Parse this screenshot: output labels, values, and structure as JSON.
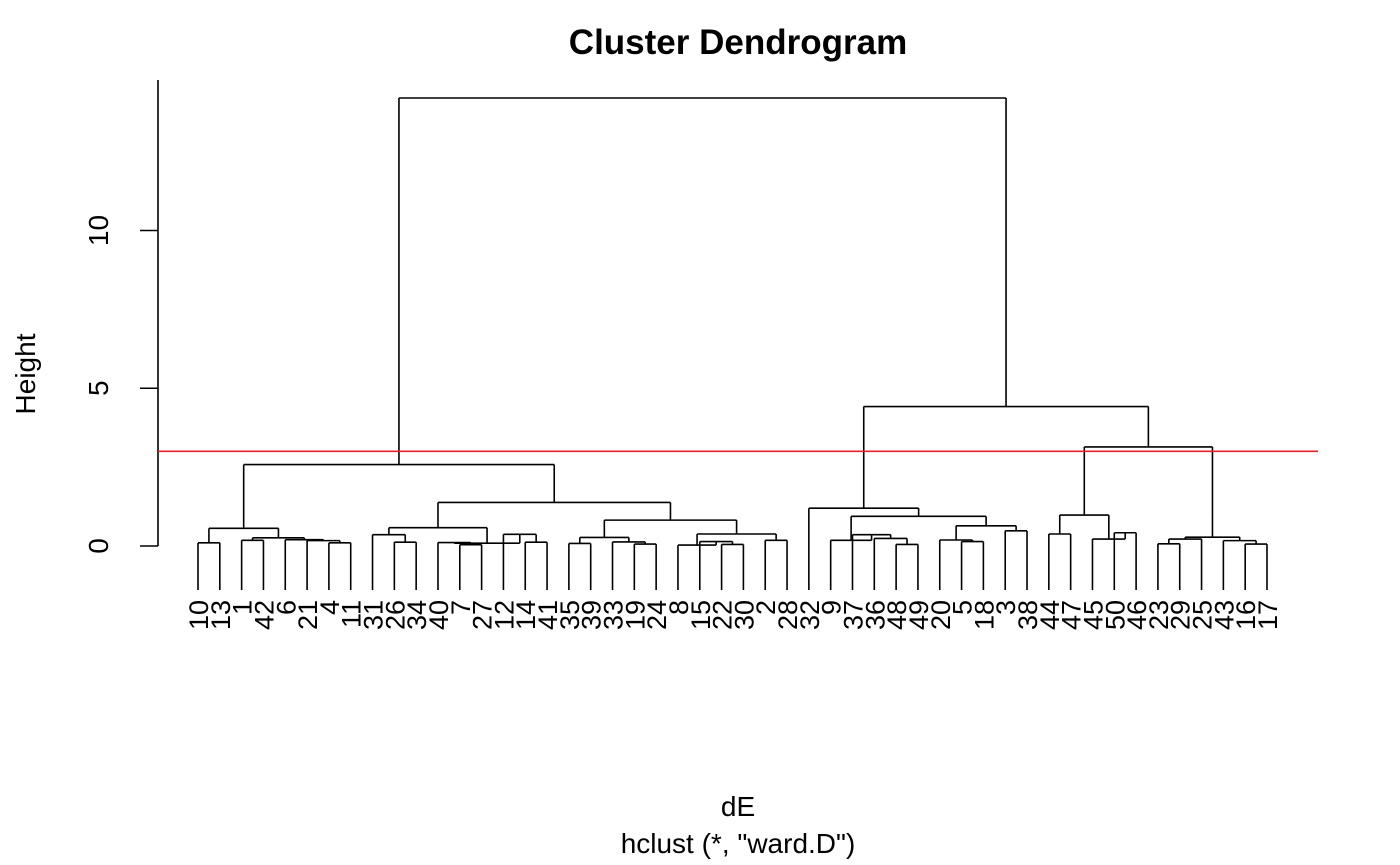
{
  "chart_data": {
    "type": "dendrogram",
    "title": "Cluster Dendrogram",
    "xlabel": "dE",
    "sublabel": "hclust (*, \"ward.D\")",
    "ylabel": "Height",
    "ylim": [
      0,
      14.5
    ],
    "yticks": [
      0,
      5,
      10
    ],
    "cut_line": {
      "height": 3.0,
      "color": "#e8202a"
    },
    "leaves": [
      "10",
      "13",
      "1",
      "42",
      "6",
      "21",
      "4",
      "11",
      "31",
      "26",
      "34",
      "40",
      "7",
      "27",
      "12",
      "14",
      "41",
      "35",
      "39",
      "33",
      "19",
      "24",
      "8",
      "15",
      "22",
      "30",
      "2",
      "28",
      "32",
      "9",
      "37",
      "36",
      "48",
      "49",
      "20",
      "5",
      "18",
      "3",
      "38",
      "44",
      "47",
      "45",
      "50",
      "46",
      "23",
      "29",
      "25",
      "43",
      "16",
      "17"
    ],
    "merges": [
      {
        "id": "g1",
        "l": "10",
        "r": "13",
        "h": 0.1
      },
      {
        "id": "g2",
        "l": "1",
        "r": "42",
        "h": 0.18
      },
      {
        "id": "g3",
        "l": "4",
        "r": "11",
        "h": 0.1
      },
      {
        "id": "g4",
        "l": "21",
        "r": "g3",
        "h": 0.17
      },
      {
        "id": "g5",
        "l": "6",
        "r": "g4",
        "h": 0.2
      },
      {
        "id": "g6",
        "l": "g2",
        "r": "g5",
        "h": 0.26
      },
      {
        "id": "g7",
        "l": "g1",
        "r": "g6",
        "h": 0.56
      },
      {
        "id": "g8",
        "l": "26",
        "r": "34",
        "h": 0.12
      },
      {
        "id": "g9",
        "l": "31",
        "r": "g8",
        "h": 0.36
      },
      {
        "id": "g10",
        "l": "7",
        "r": "27",
        "h": 0.04
      },
      {
        "id": "g11",
        "l": "40",
        "r": "g10",
        "h": 0.11
      },
      {
        "id": "g12",
        "l": "14",
        "r": "41",
        "h": 0.12
      },
      {
        "id": "g13",
        "l": "12",
        "r": "g12",
        "h": 0.37
      },
      {
        "id": "g14",
        "l": "g11",
        "r": "g13",
        "h": 0.09
      },
      {
        "id": "g15",
        "l": "g9",
        "r": "g14",
        "h": 0.58
      },
      {
        "id": "g16",
        "l": "35",
        "r": "39",
        "h": 0.08
      },
      {
        "id": "g17",
        "l": "19",
        "r": "24",
        "h": 0.06
      },
      {
        "id": "g18",
        "l": "33",
        "r": "g17",
        "h": 0.13
      },
      {
        "id": "g19",
        "l": "g16",
        "r": "g18",
        "h": 0.27
      },
      {
        "id": "g20",
        "l": "22",
        "r": "30",
        "h": 0.05
      },
      {
        "id": "g21",
        "l": "15",
        "r": "g20",
        "h": 0.14
      },
      {
        "id": "g22",
        "l": "8",
        "r": "g21",
        "h": 0.03
      },
      {
        "id": "g23",
        "l": "2",
        "r": "28",
        "h": 0.18
      },
      {
        "id": "g24",
        "l": "g22",
        "r": "g23",
        "h": 0.38
      },
      {
        "id": "g25",
        "l": "g19",
        "r": "g24",
        "h": 0.82
      },
      {
        "id": "g26",
        "l": "g15",
        "r": "g25",
        "h": 1.38
      },
      {
        "id": "g27",
        "l": "g7",
        "r": "g26",
        "h": 2.58
      },
      {
        "id": "g28",
        "l": "48",
        "r": "49",
        "h": 0.05
      },
      {
        "id": "g29",
        "l": "36",
        "r": "g28",
        "h": 0.24
      },
      {
        "id": "g30",
        "l": "37",
        "r": "g29",
        "h": 0.36
      },
      {
        "id": "g31",
        "l": "9",
        "r": "g30",
        "h": 0.18
      },
      {
        "id": "g32",
        "l": "5",
        "r": "18",
        "h": 0.14
      },
      {
        "id": "g33",
        "l": "20",
        "r": "g32",
        "h": 0.19
      },
      {
        "id": "g34",
        "l": "3",
        "r": "38",
        "h": 0.48
      },
      {
        "id": "g35",
        "l": "g33",
        "r": "g34",
        "h": 0.64
      },
      {
        "id": "g36",
        "l": "g31",
        "r": "g35",
        "h": 0.94
      },
      {
        "id": "g37",
        "l": "32",
        "r": "g36",
        "h": 1.2
      },
      {
        "id": "g38",
        "l": "44",
        "r": "47",
        "h": 0.38
      },
      {
        "id": "g39",
        "l": "50",
        "r": "46",
        "h": 0.42
      },
      {
        "id": "g40",
        "l": "45",
        "r": "g39",
        "h": 0.22
      },
      {
        "id": "g41",
        "l": "g38",
        "r": "g40",
        "h": 0.98
      },
      {
        "id": "g42",
        "l": "23",
        "r": "29",
        "h": 0.07
      },
      {
        "id": "g43",
        "l": "g42",
        "r": "25",
        "h": 0.22
      },
      {
        "id": "g44",
        "l": "16",
        "r": "17",
        "h": 0.06
      },
      {
        "id": "g45",
        "l": "43",
        "r": "g44",
        "h": 0.17
      },
      {
        "id": "g46",
        "l": "g43",
        "r": "g45",
        "h": 0.28
      },
      {
        "id": "g47",
        "l": "g41",
        "r": "g46",
        "h": 1.06
      },
      {
        "id": "g48",
        "l": "g47",
        "r": "g47b",
        "h": 3.14
      },
      {
        "id": "g49",
        "l": "g37",
        "r": "g48",
        "h": 4.42
      },
      {
        "id": "g50",
        "l": "g27",
        "r": "g49",
        "h": 14.2
      }
    ]
  }
}
